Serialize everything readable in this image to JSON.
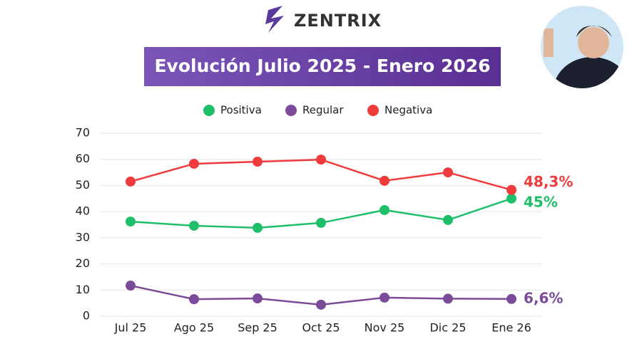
{
  "brand": "ZENTRIX",
  "chart_data": {
    "type": "line",
    "title": "Evolución Julio 2025 - Enero 2026",
    "categories": [
      "Jul 25",
      "Ago 25",
      "Sep 25",
      "Oct 25",
      "Nov 25",
      "Dic 25",
      "Ene 26"
    ],
    "series": [
      {
        "name": "Positiva",
        "color": "#1fbf6a",
        "values": [
          36.2,
          34.6,
          33.8,
          35.7,
          40.6,
          36.8,
          45
        ],
        "value_labels": [
          null,
          null,
          null,
          null,
          null,
          null,
          "45%"
        ]
      },
      {
        "name": "Regular",
        "color": "#7b4a98",
        "values": [
          11.7,
          6.5,
          6.8,
          4.4,
          7.1,
          6.7,
          6.6
        ],
        "value_labels": [
          null,
          null,
          null,
          null,
          null,
          null,
          "6,6%"
        ]
      },
      {
        "name": "Negativa",
        "color": "#ef3b3b",
        "values": [
          51.5,
          58.3,
          59.1,
          59.9,
          51.8,
          55,
          48.3
        ],
        "value_labels": [
          null,
          null,
          null,
          null,
          null,
          null,
          "48,3%"
        ]
      }
    ],
    "ylim": [
      0,
      70
    ],
    "yticks": [
      0,
      10,
      20,
      30,
      40,
      50,
      60,
      70
    ],
    "grid": true
  }
}
